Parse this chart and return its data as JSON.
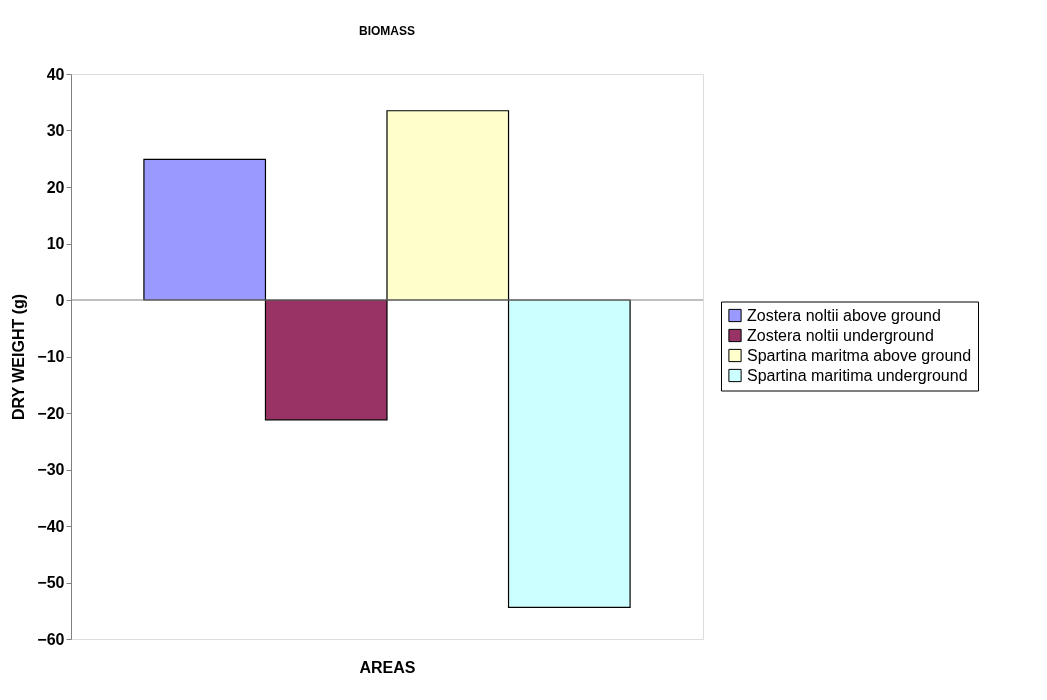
{
  "chart_data": {
    "type": "bar",
    "title": "BIOMASS",
    "xlabel": "AREAS",
    "ylabel": "DRY WEIGHT (g)",
    "categories": [
      null
    ],
    "series": [
      {
        "name": "Zostera noltii above ground",
        "color": "#9999ff",
        "values": [
          24.9
        ]
      },
      {
        "name": "Zostera noltii underground",
        "color": "#993366",
        "values": [
          -21.2
        ]
      },
      {
        "name": "Spartina maritma above ground",
        "color": "#ffffcc",
        "values": [
          33.5
        ]
      },
      {
        "name": "Spartina maritima underground",
        "color": "#ccffff",
        "values": [
          -54.4
        ]
      }
    ],
    "ylim": [
      -60,
      40
    ],
    "yticks": [
      -60,
      -50,
      -40,
      -30,
      -20,
      -10,
      0,
      10,
      20,
      30,
      40
    ],
    "legend": "right",
    "tick_labels": "y"
  }
}
